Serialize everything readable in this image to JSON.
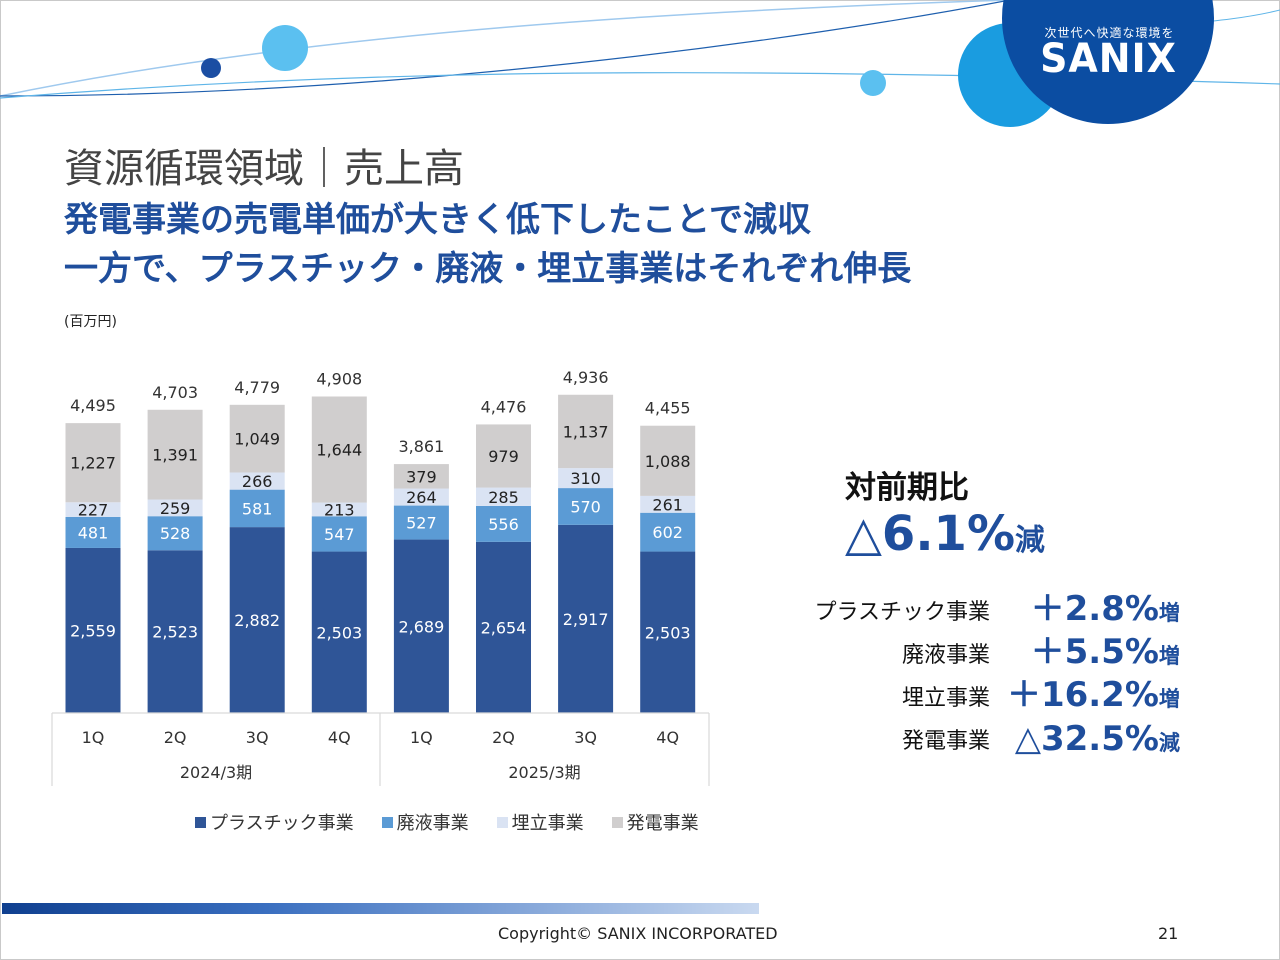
{
  "branding": {
    "tagline": "次世代へ快適な環境を",
    "logo_text": "SANIX"
  },
  "page_title": "資源循環領域｜売上高",
  "headline": {
    "line1": "発電事業の売電単価が大きく低下したことで減収",
    "line2": "一方で、プラスチック・廃液・埋立事業はそれぞれ伸長"
  },
  "unit_label": "(百万円)",
  "chart_data": {
    "type": "bar",
    "stacked": true,
    "groups": [
      {
        "label": "2024/3期",
        "quarters": [
          "1Q",
          "2Q",
          "3Q",
          "4Q"
        ]
      },
      {
        "label": "2025/3期",
        "quarters": [
          "1Q",
          "2Q",
          "3Q",
          "4Q"
        ]
      }
    ],
    "totals": [
      4495,
      4703,
      4779,
      4908,
      3861,
      4476,
      4936,
      4455
    ],
    "totals_labels": [
      "4,495",
      "4,703",
      "4,779",
      "4,908",
      "3,861",
      "4,476",
      "4,936",
      "4,455"
    ],
    "series": [
      {
        "name": "プラスチック事業",
        "color": "#2f5597",
        "label_color": "#ffffff",
        "values": [
          2559,
          2523,
          2882,
          2503,
          2689,
          2654,
          2917,
          2503
        ],
        "labels": [
          "2,559",
          "2,523",
          "2,882",
          "2,503",
          "2,689",
          "2,654",
          "2,917",
          "2,503"
        ]
      },
      {
        "name": "廃液事業",
        "color": "#5b9bd5",
        "label_color": "#ffffff",
        "values": [
          481,
          528,
          581,
          547,
          527,
          556,
          570,
          602
        ],
        "labels": [
          "481",
          "528",
          "581",
          "547",
          "527",
          "556",
          "570",
          "602"
        ]
      },
      {
        "name": "埋立事業",
        "color": "#dae3f3",
        "label_color": "#222222",
        "values": [
          227,
          259,
          266,
          213,
          264,
          285,
          310,
          261
        ],
        "labels": [
          "227",
          "259",
          "266",
          "213",
          "264",
          "285",
          "310",
          "261"
        ]
      },
      {
        "name": "発電事業",
        "color": "#d0cece",
        "label_color": "#222222",
        "values": [
          1227,
          1391,
          1049,
          1644,
          379,
          979,
          1137,
          1088
        ],
        "labels": [
          "1,227",
          "1,391",
          "1,049",
          "1,644",
          "379",
          "979",
          "1,137",
          "1,088"
        ]
      }
    ],
    "legend_position": "bottom",
    "grid": false
  },
  "yoy": {
    "title": "対前期比",
    "total": {
      "value": "△6.1%",
      "suffix": "減"
    },
    "segments": [
      {
        "name": "プラスチック事業",
        "value": "＋2.8%",
        "suffix": "増"
      },
      {
        "name": "廃液事業",
        "value": "＋5.5%",
        "suffix": "増"
      },
      {
        "name": "埋立事業",
        "value": "＋16.2%",
        "suffix": "増"
      },
      {
        "name": "発電事業",
        "value": "△32.5%",
        "suffix": "減"
      }
    ]
  },
  "footer": {
    "copyright": "Copyright©  SANIX INCORPORATED",
    "page_number": "21"
  }
}
